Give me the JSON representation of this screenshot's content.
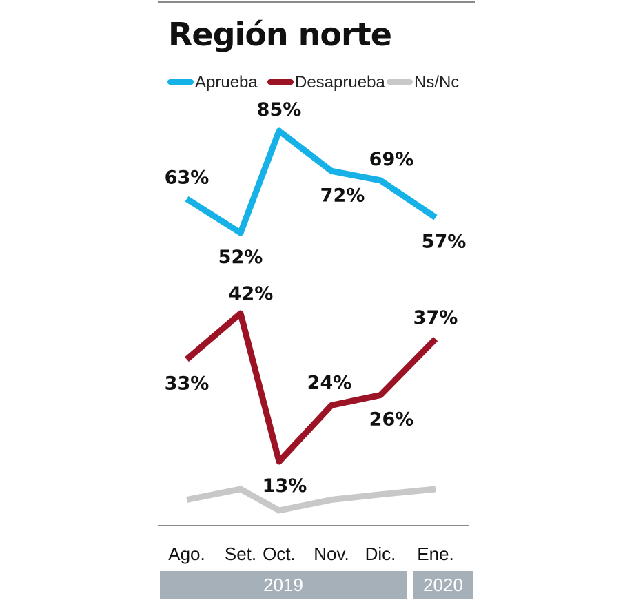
{
  "chart_data": {
    "type": "line",
    "title": "Región norte",
    "categories": [
      "Ago.",
      "Set.",
      "Oct.",
      "Nov.",
      "Dic.",
      "Ene."
    ],
    "year_groups": [
      {
        "label": "2019",
        "from": 0,
        "to": 4
      },
      {
        "label": "2020",
        "from": 5,
        "to": 5
      }
    ],
    "series": [
      {
        "name": "Aprueba",
        "color": "#16b1e6",
        "values": [
          63,
          52,
          85,
          72,
          69,
          57
        ],
        "labels": [
          "63%",
          "52%",
          "85%",
          "72%",
          "69%",
          "57%"
        ]
      },
      {
        "name": "Desaprueba",
        "color": "#9b1325",
        "values": [
          33,
          42,
          13,
          24,
          26,
          37
        ],
        "labels": [
          "33%",
          "42%",
          "13%",
          "24%",
          "26%",
          "37%"
        ]
      },
      {
        "name": "Ns/Nc",
        "color": "#c8c8c8",
        "values": [
          4,
          6,
          2,
          4,
          5,
          6
        ],
        "labels": []
      }
    ],
    "ylim": [
      0,
      100
    ],
    "grid": false,
    "legend": "top"
  },
  "colors": {
    "year_band": "#a5b0b8",
    "rule": "#8a8a8a"
  }
}
